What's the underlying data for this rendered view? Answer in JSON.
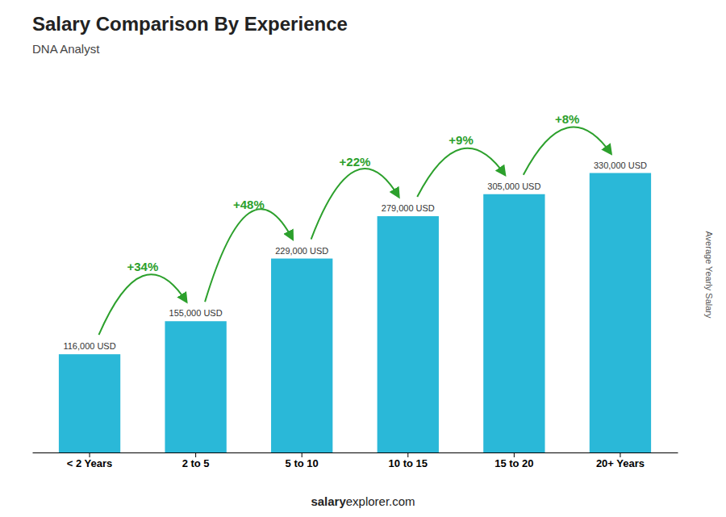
{
  "chart_data": {
    "type": "bar",
    "title": "Salary Comparison By Experience",
    "subtitle": "DNA Analyst",
    "ylabel": "Average Yearly Salary",
    "categories": [
      "< 2 Years",
      "2 to 5",
      "5 to 10",
      "10 to 15",
      "15 to 20",
      "20+ Years"
    ],
    "values": [
      116000,
      155000,
      229000,
      279000,
      305000,
      330000
    ],
    "value_labels": [
      "116,000 USD",
      "155,000 USD",
      "229,000 USD",
      "279,000 USD",
      "305,000 USD",
      "330,000 USD"
    ],
    "color": "#2ab8d8",
    "ylim": [
      0,
      420000
    ],
    "data_labels": true,
    "tick_labels": "x",
    "grid": false,
    "annotations": [
      "+34%",
      "+48%",
      "+22%",
      "+9%",
      "+8%"
    ],
    "footer": [
      "salary",
      "explorer.com"
    ]
  }
}
